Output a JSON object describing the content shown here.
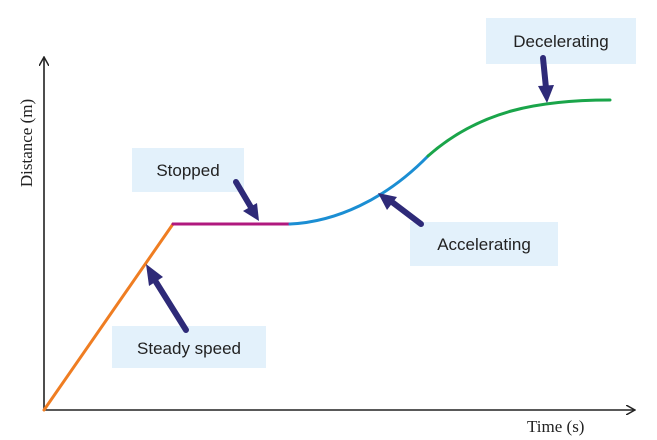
{
  "axes": {
    "x_label": "Time (s)",
    "y_label": "Distance (m)"
  },
  "labels": {
    "steady_speed": "Steady speed",
    "stopped": "Stopped",
    "accelerating": "Accelerating",
    "decelerating": "Decelerating"
  },
  "colors": {
    "steady_speed": "#ef7d22",
    "stopped": "#b0187e",
    "accelerating": "#1b8ed3",
    "decelerating": "#1aa54a",
    "pointer_arrow": "#2e2a78",
    "label_box": "#e3f1fb"
  }
}
